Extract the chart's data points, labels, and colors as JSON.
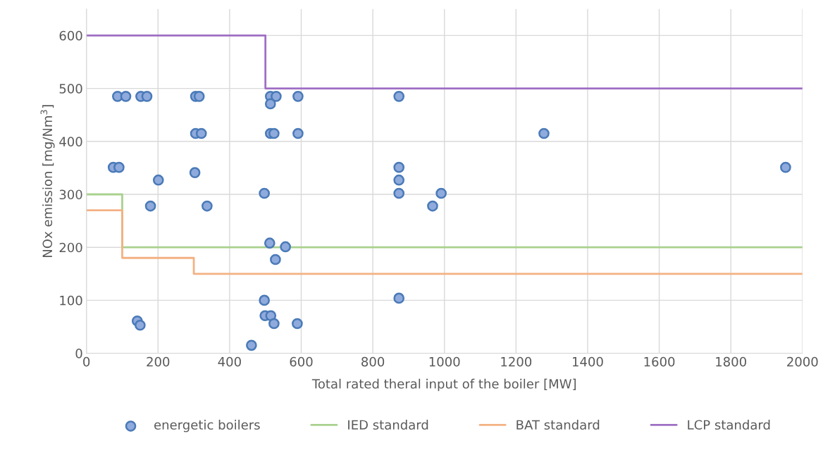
{
  "chart_data": {
    "type": "scatter",
    "xlabel": "Total rated theral input of the boiler [MW]",
    "ylabel": "NOx emission [mg/Nm$^{3}$]",
    "xlim": [
      0,
      2000
    ],
    "xticks": [
      0,
      200,
      400,
      600,
      800,
      1000,
      1200,
      1400,
      1600,
      1800,
      2000
    ],
    "ylim": [
      0,
      650
    ],
    "yticks": [
      0,
      100,
      200,
      300,
      400,
      500,
      600
    ],
    "grid": true,
    "legend": "bottom",
    "series": [
      {
        "name": "energetic boilers",
        "marker": "circle",
        "color": "#8faadc",
        "x": [
          87,
          110,
          152,
          169,
          305,
          315,
          514,
          530,
          514,
          591,
          873,
          305,
          321,
          514,
          524,
          591,
          1278,
          75,
          91,
          201,
          303,
          497,
          179,
          337,
          873,
          873,
          873,
          991,
          967,
          1953,
          512,
          556,
          528,
          873,
          497,
          499,
          515,
          524,
          589,
          461,
          142,
          150
        ],
        "values": [
          485,
          485,
          485,
          485,
          485,
          485,
          485,
          485,
          471,
          485,
          485,
          415,
          415,
          415,
          415,
          415,
          415,
          351,
          351,
          327,
          341,
          302,
          278,
          278,
          351,
          327,
          302,
          302,
          278,
          351,
          208,
          201,
          177,
          104,
          100,
          71,
          71,
          56,
          56,
          15,
          61,
          53
        ]
      },
      {
        "name": "IED standard",
        "type": "line",
        "color": "#a9d18e",
        "x": [
          0,
          100,
          100,
          2000
        ],
        "values": [
          300,
          300,
          200,
          200
        ]
      },
      {
        "name": "BAT standard",
        "type": "line",
        "color": "#f4b183",
        "x": [
          0,
          100,
          100,
          300,
          300,
          2000
        ],
        "values": [
          270,
          270,
          180,
          180,
          150,
          150
        ]
      },
      {
        "name": "LCP standard",
        "type": "line",
        "color": "#9e6fc4",
        "x": [
          0,
          500,
          500,
          2000
        ],
        "values": [
          600,
          600,
          500,
          500
        ]
      }
    ]
  }
}
